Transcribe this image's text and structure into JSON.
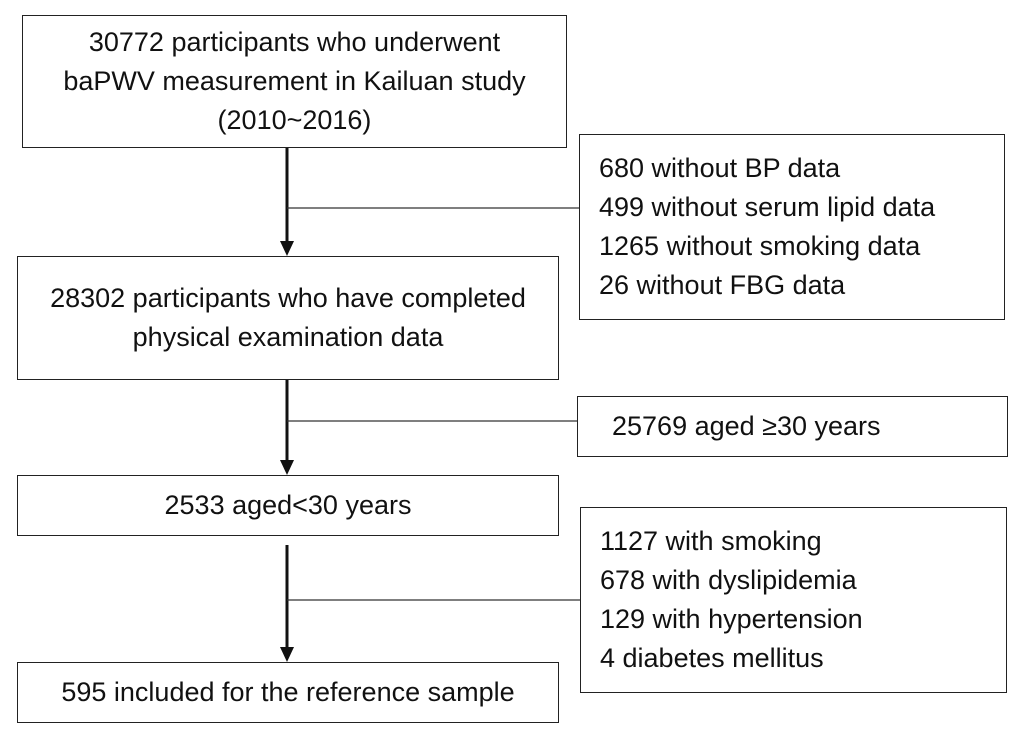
{
  "flowchart": {
    "main_boxes": [
      {
        "lines": [
          "30772 participants who underwent",
          "baPWV measurement in Kailuan study",
          "(2010~2016)"
        ]
      },
      {
        "lines": [
          "28302 participants who have completed",
          "physical examination data"
        ]
      },
      {
        "lines": [
          "2533 aged<30 years"
        ]
      },
      {
        "lines": [
          "595 included for the reference sample"
        ]
      }
    ],
    "exclusion_boxes": [
      {
        "lines": [
          "680 without BP data",
          "499 without serum lipid data",
          "1265 without smoking data",
          "26 without FBG data"
        ]
      },
      {
        "lines": [
          "25769 aged ≥30 years"
        ]
      },
      {
        "lines": [
          "1127 with smoking",
          "678 with dyslipidemia",
          "129 with hypertension",
          "4 diabetes mellitus"
        ]
      }
    ]
  }
}
